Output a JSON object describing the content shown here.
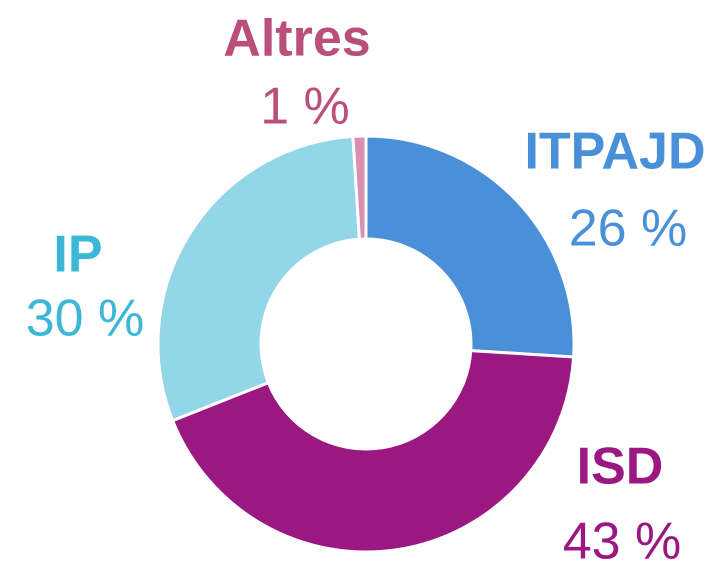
{
  "chart_data": {
    "type": "donut",
    "categories": [
      "ITPAJD",
      "ISD",
      "IP",
      "Altres"
    ],
    "values": [
      26,
      43,
      30,
      1
    ],
    "value_labels": [
      "26 %",
      "43 %",
      "30 %",
      "1 %"
    ],
    "colors": [
      "#4a90d9",
      "#9b1782",
      "#93d6e7",
      "#d98fb0"
    ],
    "label_colors": [
      "#4a90d9",
      "#9b1782",
      "#3db7d8",
      "#b94f7a"
    ]
  }
}
